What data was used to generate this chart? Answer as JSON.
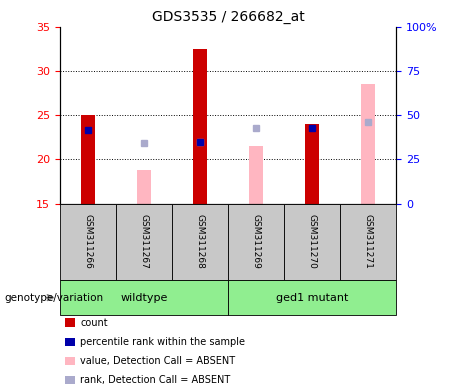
{
  "title": "GDS3535 / 266682_at",
  "samples": [
    "GSM311266",
    "GSM311267",
    "GSM311268",
    "GSM311269",
    "GSM311270",
    "GSM311271"
  ],
  "count_values": [
    25.0,
    null,
    32.5,
    null,
    24.0,
    null
  ],
  "percentile_rank_values": [
    23.3,
    null,
    22.0,
    null,
    23.5,
    null
  ],
  "absent_value_values": [
    null,
    18.8,
    22.0,
    21.5,
    null,
    28.5
  ],
  "absent_rank_values": [
    null,
    21.8,
    22.0,
    23.5,
    null,
    24.2
  ],
  "ylim_left": [
    15,
    35
  ],
  "ylim_right": [
    0,
    100
  ],
  "yticks_left": [
    15,
    20,
    25,
    30,
    35
  ],
  "yticks_right": [
    0,
    25,
    50,
    75,
    100
  ],
  "ytick_labels_right": [
    "0",
    "25",
    "50",
    "75",
    "100%"
  ],
  "hgrid_lines": [
    20,
    25,
    30
  ],
  "color_count": "#CC0000",
  "color_percentile": "#0000AA",
  "color_absent_value": "#FFB6C1",
  "color_absent_rank": "#AAAACC",
  "legend_items": [
    {
      "color": "#CC0000",
      "label": "count"
    },
    {
      "color": "#0000AA",
      "label": "percentile rank within the sample"
    },
    {
      "color": "#FFB6C1",
      "label": "value, Detection Call = ABSENT"
    },
    {
      "color": "#AAAACC",
      "label": "rank, Detection Call = ABSENT"
    }
  ],
  "genotype_label": "genotype/variation",
  "sample_box_bg": "#C8C8C8",
  "group_box_bg": "#90EE90",
  "title_fontsize": 10,
  "axis_tick_fontsize": 8,
  "sample_label_fontsize": 6.5,
  "group_label_fontsize": 8,
  "legend_fontsize": 7,
  "genotype_fontsize": 7.5,
  "bar_width": 0.25,
  "marker_size": 4
}
